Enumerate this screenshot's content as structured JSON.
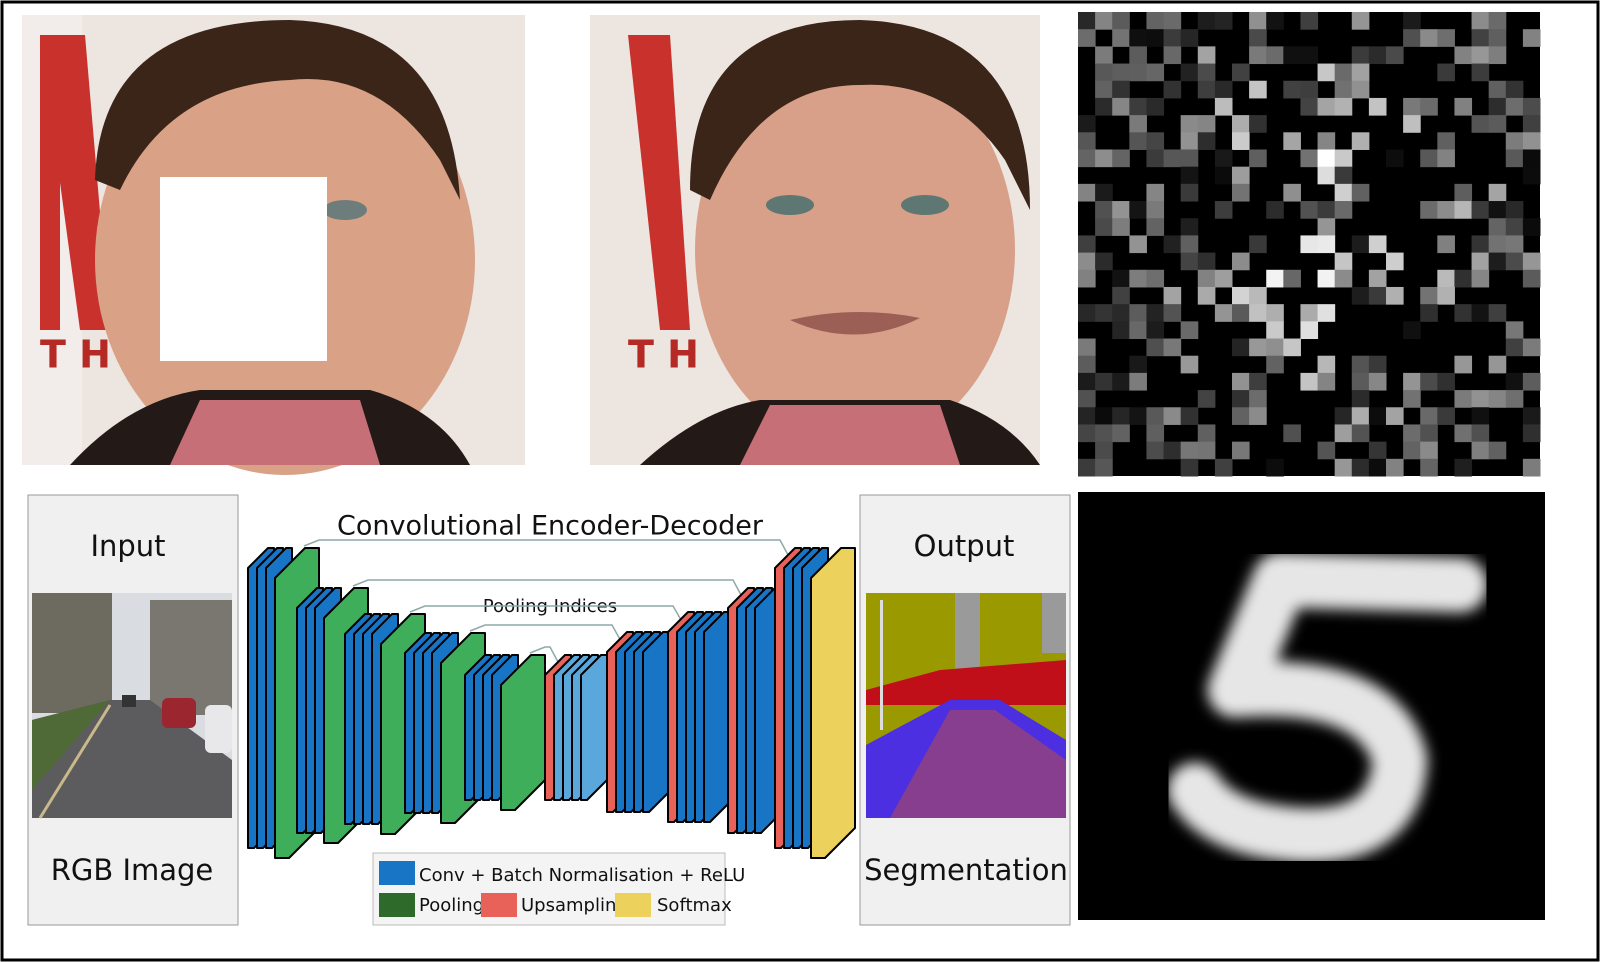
{
  "diagram": {
    "title": "Convolutional Encoder-Decoder",
    "pooling_label": "Pooling Indices",
    "input": {
      "title": "Input",
      "caption": "RGB Image"
    },
    "output": {
      "title": "Output",
      "caption": "Segmentation"
    },
    "legend": [
      "Conv + Batch Normalisation + ReLU",
      "Pooling",
      "Upsampling",
      "Softmax"
    ]
  }
}
